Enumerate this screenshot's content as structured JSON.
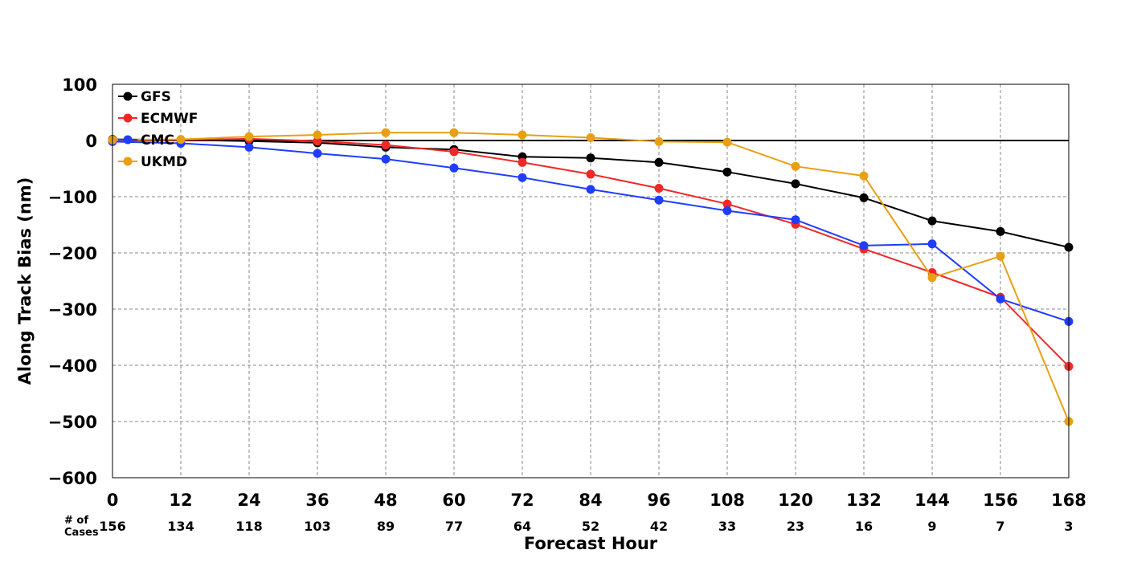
{
  "chart_data": {
    "type": "line",
    "title": "",
    "xlabel": "Forecast Hour",
    "ylabel": "Along Track Bias (nm)",
    "x": [
      0,
      12,
      24,
      36,
      48,
      60,
      72,
      84,
      96,
      108,
      120,
      132,
      144,
      156,
      168
    ],
    "xlim": [
      0,
      168
    ],
    "ylim": [
      -600,
      100
    ],
    "yticks": [
      100,
      0,
      -100,
      -200,
      -300,
      -400,
      -500,
      -600
    ],
    "ytick_labels": [
      "100",
      "0",
      "−100",
      "−200",
      "−300",
      "−400",
      "−500",
      "−600"
    ],
    "xtick_labels": [
      "0",
      "12",
      "24",
      "36",
      "48",
      "60",
      "72",
      "84",
      "96",
      "108",
      "120",
      "132",
      "144",
      "156",
      "168"
    ],
    "grid": true,
    "zero_line": true,
    "legend_position": "top-left",
    "cases_label": "# of\nCases",
    "cases": [
      "156",
      "134",
      "118",
      "103",
      "89",
      "77",
      "64",
      "52",
      "42",
      "33",
      "23",
      "16",
      "9",
      "7",
      "3"
    ],
    "series": [
      {
        "name": "GFS",
        "color": "#000000",
        "values": [
          2,
          1,
          -1,
          -4,
          -12,
          -16,
          -29,
          -31,
          -39,
          -56,
          -77,
          -102,
          -143,
          -162,
          -190
        ]
      },
      {
        "name": "ECMWF",
        "color": "#f02828",
        "values": [
          0,
          1,
          3,
          -1,
          -8,
          -20,
          -39,
          -60,
          -85,
          -113,
          -149,
          -193,
          -235,
          -279,
          -402
        ]
      },
      {
        "name": "CMC",
        "color": "#1f3dff",
        "values": [
          -2,
          -5,
          -12,
          -23,
          -33,
          -49,
          -66,
          -87,
          -106,
          -125,
          -141,
          -187,
          -184,
          -282,
          -322
        ]
      },
      {
        "name": "UKMD",
        "color": "#e8a012",
        "values": [
          1,
          2,
          7,
          10,
          14,
          14,
          10,
          5,
          -2,
          -3,
          -46,
          -63,
          -244,
          -206,
          -500
        ]
      }
    ]
  }
}
